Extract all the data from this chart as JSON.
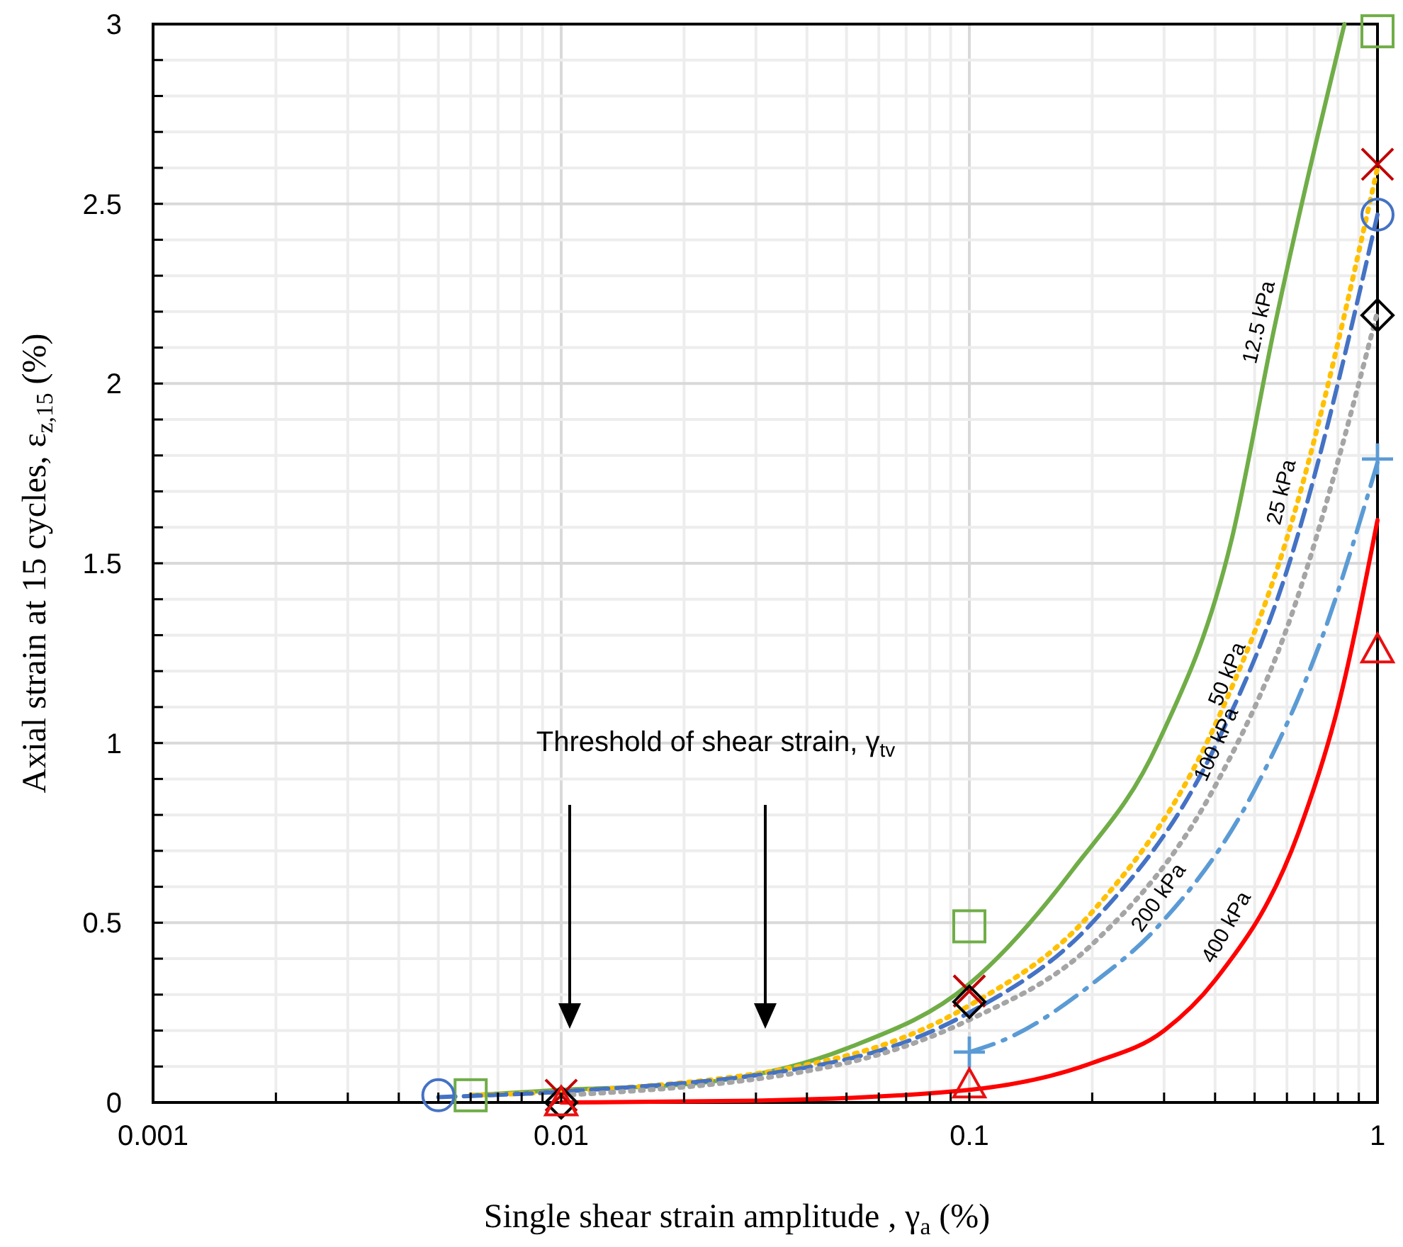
{
  "chart_data": {
    "type": "line",
    "xlabel": "Single shear strain amplitude , γ$_{a}$ (%)",
    "ylabel": "Axial strain at 15 cycles, ε$_{z,15}$ (%)",
    "log": "x",
    "xlim": [
      0.001,
      1
    ],
    "ylim": [
      0,
      3
    ],
    "xticks": [
      0.001,
      {
        "value": 0.002,
        "label": null
      },
      {
        "value": 0.003,
        "label": null
      },
      {
        "value": 0.004,
        "label": null
      },
      {
        "value": 0.005,
        "label": null
      },
      {
        "value": 0.006,
        "label": null
      },
      {
        "value": 0.007,
        "label": null
      },
      {
        "value": 0.008,
        "label": null
      },
      {
        "value": 0.009,
        "label": null
      },
      0.01,
      {
        "value": 0.02,
        "label": null
      },
      {
        "value": 0.03,
        "label": null
      },
      {
        "value": 0.04,
        "label": null
      },
      {
        "value": 0.05,
        "label": null
      },
      {
        "value": 0.06,
        "label": null
      },
      {
        "value": 0.07,
        "label": null
      },
      {
        "value": 0.08,
        "label": null
      },
      {
        "value": 0.09,
        "label": null
      },
      0.1,
      {
        "value": 0.2,
        "label": null
      },
      {
        "value": 0.3,
        "label": null
      },
      {
        "value": 0.4,
        "label": null
      },
      {
        "value": 0.5,
        "label": null
      },
      {
        "value": 0.6,
        "label": null
      },
      {
        "value": 0.7,
        "label": null
      },
      {
        "value": 0.8,
        "label": null
      },
      {
        "value": 0.9,
        "label": null
      },
      1
    ],
    "yticks": [
      0,
      {
        "value": 0.1,
        "label": null
      },
      {
        "value": 0.2,
        "label": null
      },
      {
        "value": 0.3,
        "label": null
      },
      {
        "value": 0.4,
        "label": null
      },
      0.5,
      {
        "value": 0.6,
        "label": null
      },
      {
        "value": 0.7,
        "label": null
      },
      {
        "value": 0.8,
        "label": null
      },
      {
        "value": 0.9,
        "label": null
      },
      1,
      {
        "value": 1.1,
        "label": null
      },
      {
        "value": 1.2,
        "label": null
      },
      {
        "value": 1.3,
        "label": null
      },
      {
        "value": 1.4,
        "label": null
      },
      1.5,
      {
        "value": 1.6,
        "label": null
      },
      {
        "value": 1.7,
        "label": null
      },
      {
        "value": 1.8,
        "label": null
      },
      {
        "value": 1.9,
        "label": null
      },
      2,
      {
        "value": 2.1,
        "label": null
      },
      {
        "value": 2.2,
        "label": null
      },
      {
        "value": 2.3,
        "label": null
      },
      {
        "value": 2.4,
        "label": null
      },
      2.5,
      {
        "value": 2.6,
        "label": null
      },
      {
        "value": 2.7,
        "label": null
      },
      {
        "value": 2.8,
        "label": null
      },
      {
        "value": 2.9,
        "label": null
      },
      3
    ],
    "grid": true,
    "legend": false,
    "annotations": [
      "Threshold of shear strain, γ$_{tv}$"
    ],
    "series": [
      {
        "name": "12.5 kPa",
        "color": "#70ad47",
        "line_style": "solid",
        "x": [
          0.006,
          0.01,
          0.02,
          0.05,
          0.1,
          0.18,
          0.29,
          0.44,
          0.56,
          0.83
        ],
        "values": [
          0.02,
          0.035,
          0.05,
          0.15,
          0.33,
          0.65,
          1.0,
          1.57,
          2.16,
          3.0
        ]
      },
      {
        "name": "25 kPa",
        "color": "#ffc000",
        "line_style": "dotted",
        "x": [
          0.006,
          0.01,
          0.05,
          0.1,
          0.2,
          0.4,
          0.6,
          1
        ],
        "values": [
          0.02,
          0.03,
          0.13,
          0.27,
          0.53,
          1.05,
          1.57,
          2.6
        ]
      },
      {
        "name": "50 kPa",
        "color": "#4472c4",
        "line_style": "dashed",
        "x": [
          0.005,
          0.01,
          0.05,
          0.1,
          0.2,
          0.4,
          0.6,
          1
        ],
        "values": [
          0.015,
          0.03,
          0.12,
          0.25,
          0.5,
          0.99,
          1.48,
          2.47
        ]
      },
      {
        "name": "100 kPa",
        "color": "#a5a5a5",
        "line_style": "dotted",
        "x": [
          0.01,
          0.05,
          0.1,
          0.2,
          0.4,
          0.6,
          1
        ],
        "values": [
          0.02,
          0.11,
          0.23,
          0.44,
          0.88,
          1.32,
          2.2
        ]
      },
      {
        "name": "200 kPa",
        "color": "#5b9bd5",
        "line_style": "dashdot",
        "x": [
          0.1,
          0.125,
          0.2,
          0.29,
          0.5,
          0.735,
          1
        ],
        "values": [
          0.14,
          0.18,
          0.33,
          0.49,
          0.87,
          1.3,
          1.78
        ]
      },
      {
        "name": "400 kPa",
        "color": "#ff0000",
        "line_style": "solid",
        "x": [
          0.01,
          0.03,
          0.1,
          0.2,
          0.3,
          0.4,
          0.64,
          0.8,
          1
        ],
        "values": [
          0.0,
          0.005,
          0.035,
          0.11,
          0.2,
          0.34,
          0.75,
          1.1,
          1.62
        ]
      },
      {
        "type": "scatter",
        "color": "#70ad47",
        "marker": "square",
        "x": [
          0.006,
          0.1,
          1
        ],
        "values": [
          0.02,
          0.49,
          2.98
        ]
      },
      {
        "type": "scatter",
        "color": "#c00000",
        "marker": "x",
        "x": [
          0.01,
          0.1,
          1
        ],
        "values": [
          0.02,
          0.31,
          2.61
        ]
      },
      {
        "type": "scatter",
        "color": "#4472c4",
        "marker": "circle",
        "x": [
          0.005,
          1
        ],
        "values": [
          0.02,
          2.47
        ]
      },
      {
        "type": "scatter",
        "color": "#000000",
        "marker": "diamond",
        "x": [
          0.01,
          0.1,
          1
        ],
        "values": [
          0.0,
          0.28,
          2.19
        ]
      },
      {
        "type": "scatter",
        "color": "#5b9bd5",
        "marker": "cross",
        "x": [
          0.1,
          1
        ],
        "values": [
          0.14,
          1.79
        ]
      },
      {
        "type": "scatter",
        "color": "#e81010",
        "marker": "triangle",
        "x": [
          0.01,
          0.1,
          1
        ],
        "values": [
          0.0,
          0.05,
          1.26
        ]
      }
    ]
  }
}
